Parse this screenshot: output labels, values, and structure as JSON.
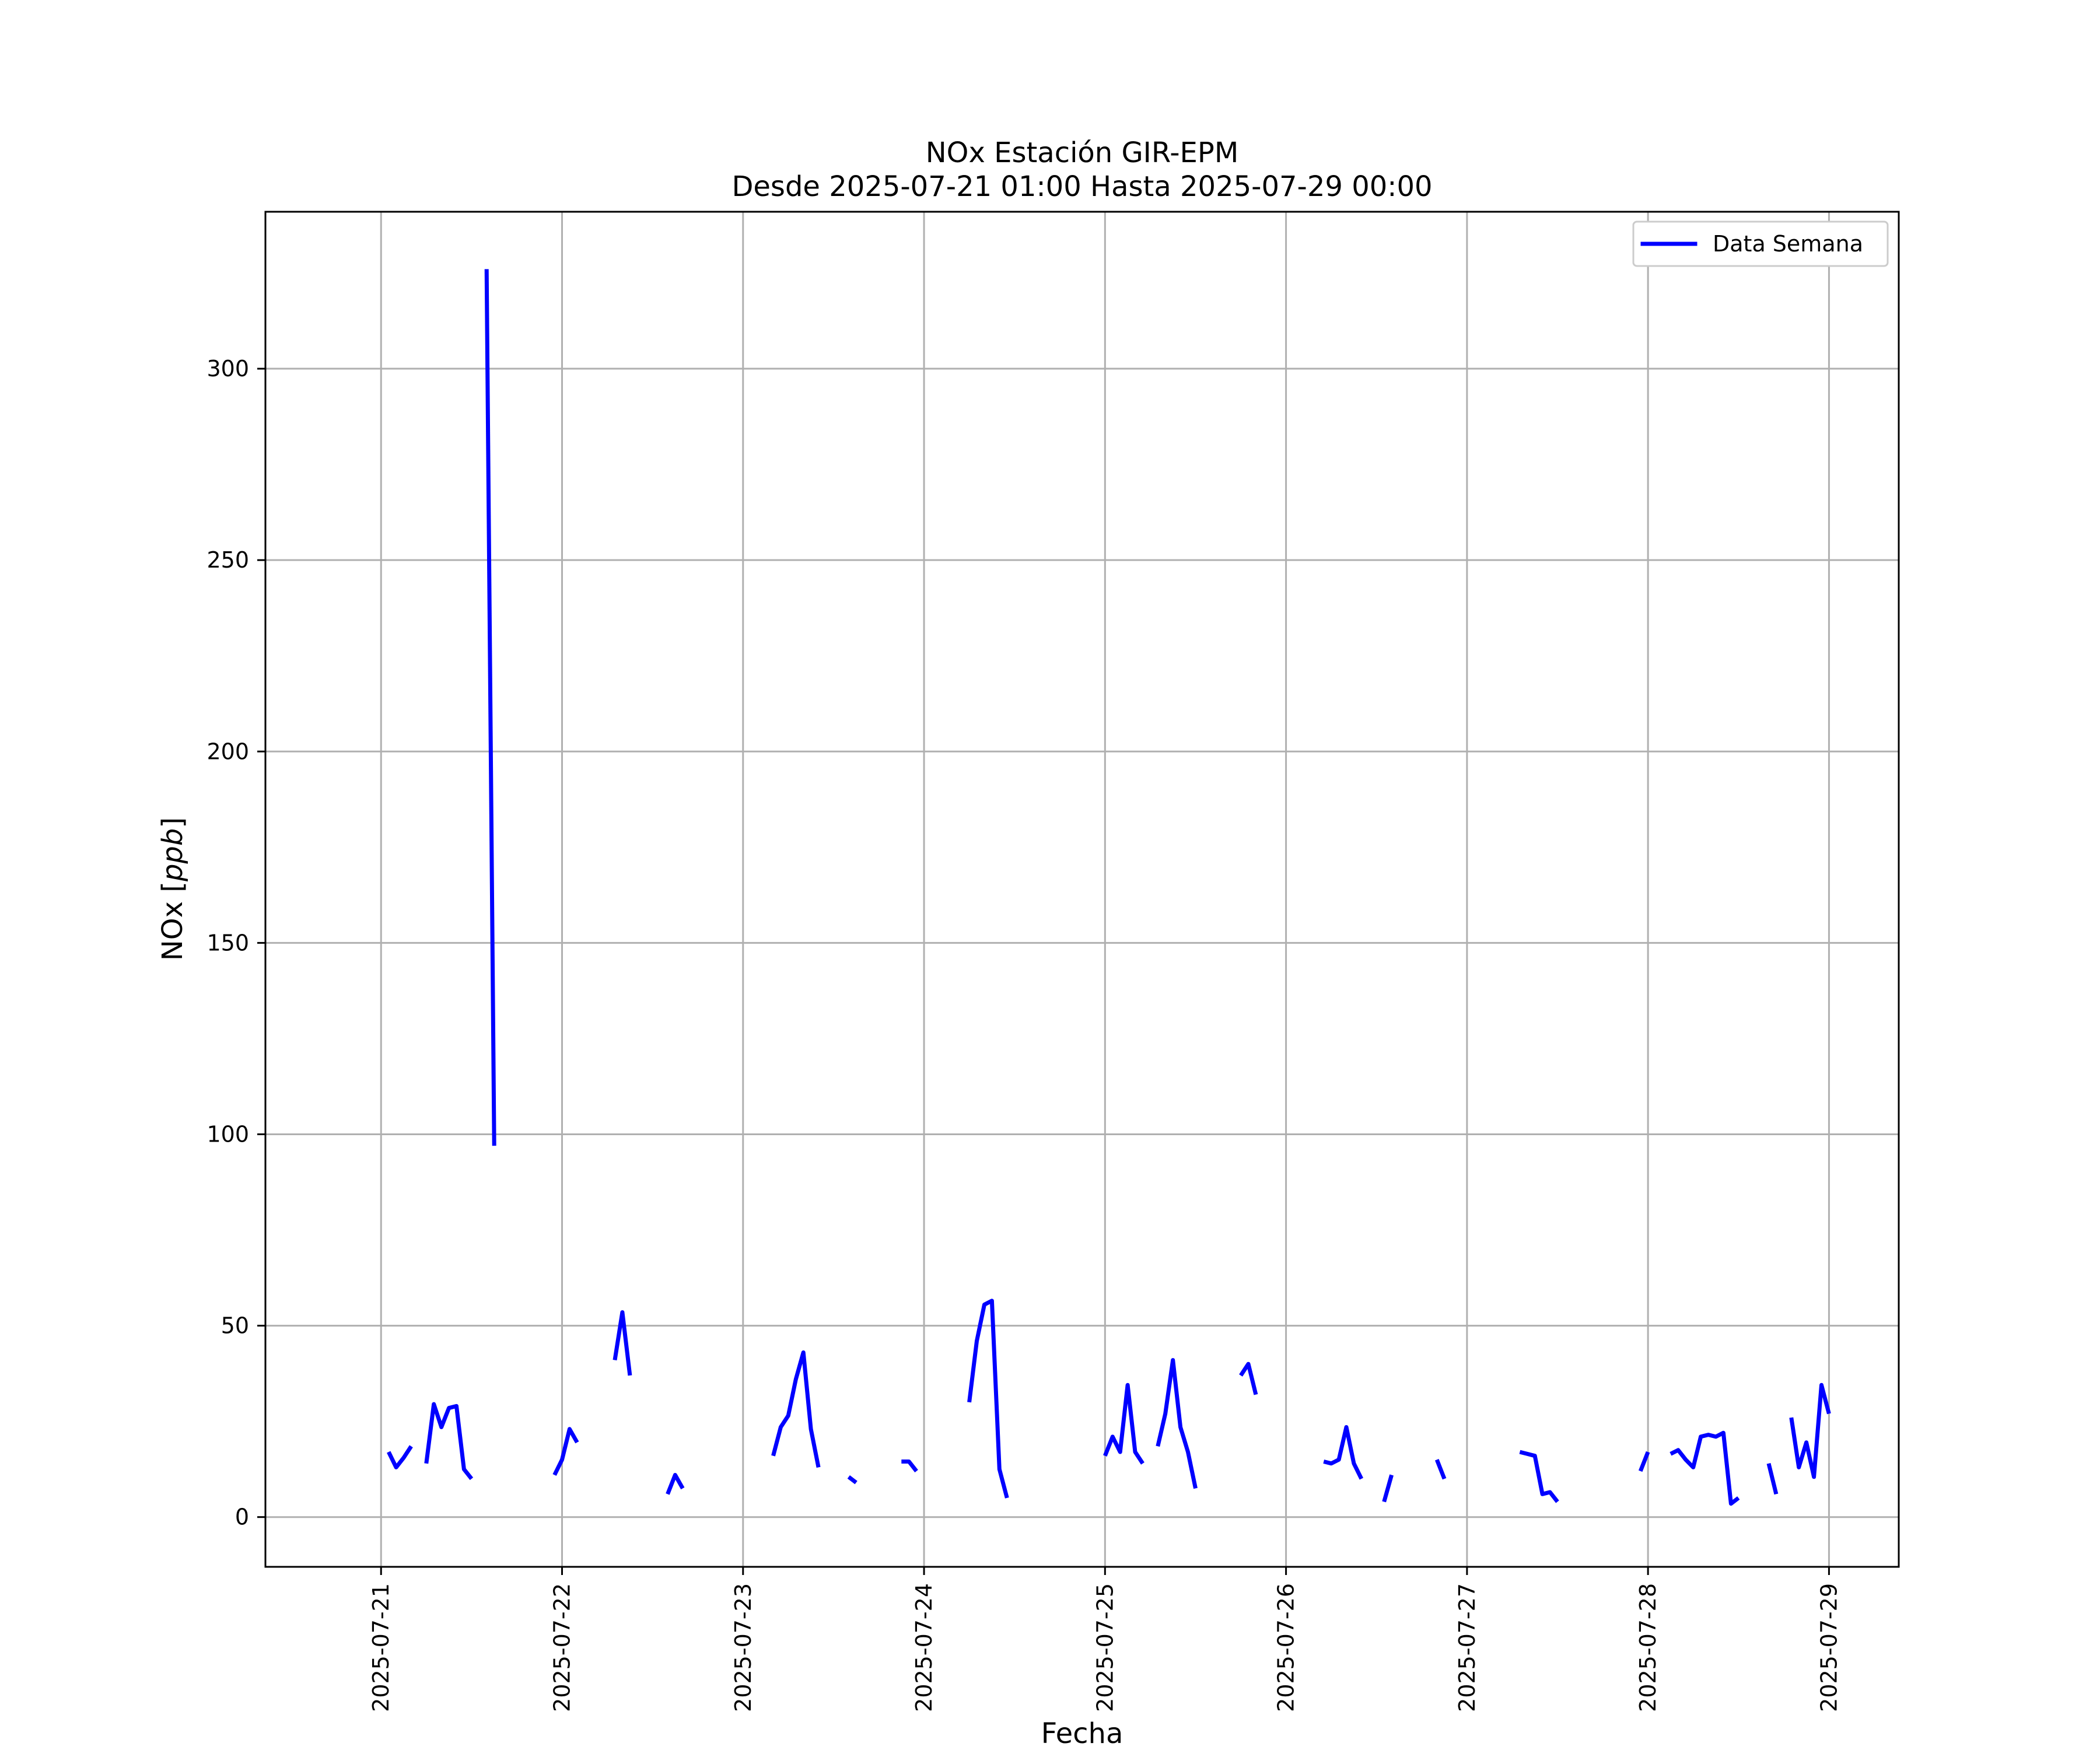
{
  "chart_data": {
    "type": "line",
    "title": [
      "NOx Estación GIR-EPM",
      "Desde 2025-07-21 01:00 Hasta 2025-07-29 00:00"
    ],
    "xlabel": "Fecha",
    "ylabel": "NOx [ppb]",
    "ylabel_parts": {
      "prefix": "NOx [",
      "unit": "ppb",
      "suffix": "]"
    },
    "x_ticks": [
      "2025-07-21",
      "2025-07-22",
      "2025-07-23",
      "2025-07-24",
      "2025-07-25",
      "2025-07-26",
      "2025-07-27",
      "2025-07-28",
      "2025-07-29"
    ],
    "y_ticks": [
      0,
      50,
      100,
      150,
      200,
      250,
      300
    ],
    "xlim": [
      "2025-07-20 08:40",
      "2025-07-29 09:15"
    ],
    "ylim": [
      -13,
      341
    ],
    "grid": true,
    "legend": {
      "position": "top-right"
    },
    "series": [
      {
        "name": "Data Semana",
        "color": "#0000ff",
        "segments": [
          [
            [
              "2025-07-21 01:00",
              17
            ],
            [
              "2025-07-21 02:00",
              13
            ],
            [
              "2025-07-21 03:00",
              15.5
            ],
            [
              "2025-07-21 04:00",
              18.5
            ]
          ],
          [
            [
              "2025-07-21 06:00",
              14
            ],
            [
              "2025-07-21 07:00",
              29.5
            ],
            [
              "2025-07-21 08:00",
              23.5
            ],
            [
              "2025-07-21 09:00",
              28.5
            ],
            [
              "2025-07-21 10:00",
              29
            ],
            [
              "2025-07-21 11:00",
              12.5
            ],
            [
              "2025-07-21 12:00",
              10
            ]
          ],
          [
            [
              "2025-07-21 14:00",
              326
            ],
            [
              "2025-07-21 15:00",
              97
            ]
          ],
          [
            [
              "2025-07-21 23:00",
              11
            ],
            [
              "2025-07-22 00:00",
              15
            ],
            [
              "2025-07-22 01:00",
              23
            ],
            [
              "2025-07-22 02:00",
              19.5
            ]
          ],
          [
            [
              "2025-07-22 07:00",
              41
            ],
            [
              "2025-07-22 08:00",
              53.5
            ],
            [
              "2025-07-22 09:00",
              37
            ]
          ],
          [
            [
              "2025-07-22 14:00",
              6
            ],
            [
              "2025-07-22 15:00",
              11
            ],
            [
              "2025-07-22 16:00",
              7.5
            ]
          ],
          [
            [
              "2025-07-23 04:00",
              16
            ],
            [
              "2025-07-23 05:00",
              23.5
            ],
            [
              "2025-07-23 06:00",
              26.5
            ],
            [
              "2025-07-23 07:00",
              36
            ],
            [
              "2025-07-23 08:00",
              43
            ],
            [
              "2025-07-23 09:00",
              23
            ],
            [
              "2025-07-23 10:00",
              13
            ]
          ],
          [
            [
              "2025-07-23 14:00",
              10.5
            ],
            [
              "2025-07-23 15:00",
              9
            ]
          ],
          [
            [
              "2025-07-23 21:00",
              14.5
            ],
            [
              "2025-07-23 22:00",
              14.5
            ],
            [
              "2025-07-23 23:00",
              12
            ]
          ],
          [
            [
              "2025-07-24 06:00",
              30
            ],
            [
              "2025-07-24 07:00",
              46
            ],
            [
              "2025-07-24 08:00",
              55.5
            ],
            [
              "2025-07-24 09:00",
              56.5
            ],
            [
              "2025-07-24 10:00",
              12.5
            ],
            [
              "2025-07-24 11:00",
              5
            ]
          ],
          [
            [
              "2025-07-25 00:00",
              16
            ],
            [
              "2025-07-25 01:00",
              21
            ],
            [
              "2025-07-25 02:00",
              17
            ],
            [
              "2025-07-25 03:00",
              34.5
            ],
            [
              "2025-07-25 04:00",
              17
            ],
            [
              "2025-07-25 05:00",
              14
            ]
          ],
          [
            [
              "2025-07-25 07:00",
              18.5
            ],
            [
              "2025-07-25 08:00",
              27
            ],
            [
              "2025-07-25 09:00",
              41
            ],
            [
              "2025-07-25 10:00",
              23.5
            ],
            [
              "2025-07-25 11:00",
              17
            ],
            [
              "2025-07-25 12:00",
              7.5
            ]
          ],
          [
            [
              "2025-07-25 18:00",
              37
            ],
            [
              "2025-07-25 19:00",
              40
            ],
            [
              "2025-07-25 20:00",
              32
            ]
          ],
          [
            [
              "2025-07-26 05:00",
              14.5
            ],
            [
              "2025-07-26 06:00",
              14
            ],
            [
              "2025-07-26 07:00",
              15
            ],
            [
              "2025-07-26 08:00",
              23.5
            ],
            [
              "2025-07-26 09:00",
              14
            ],
            [
              "2025-07-26 10:00",
              10
            ]
          ],
          [
            [
              "2025-07-26 13:00",
              4
            ],
            [
              "2025-07-26 14:00",
              11
            ]
          ],
          [
            [
              "2025-07-26 20:00",
              15
            ],
            [
              "2025-07-26 21:00",
              10
            ]
          ],
          [
            [
              "2025-07-27 07:00",
              17
            ],
            [
              "2025-07-27 08:00",
              16.5
            ],
            [
              "2025-07-27 09:00",
              16
            ],
            [
              "2025-07-27 10:00",
              6
            ],
            [
              "2025-07-27 11:00",
              6.5
            ],
            [
              "2025-07-27 12:00",
              4
            ]
          ],
          [
            [
              "2025-07-27 23:00",
              12
            ],
            [
              "2025-07-28 00:00",
              17
            ]
          ],
          [
            [
              "2025-07-28 03:00",
              16.5
            ],
            [
              "2025-07-28 04:00",
              17.5
            ],
            [
              "2025-07-28 05:00",
              15
            ],
            [
              "2025-07-28 06:00",
              13
            ],
            [
              "2025-07-28 07:00",
              21
            ],
            [
              "2025-07-28 08:00",
              21.5
            ],
            [
              "2025-07-28 09:00",
              21
            ],
            [
              "2025-07-28 10:00",
              22
            ],
            [
              "2025-07-28 11:00",
              3.5
            ],
            [
              "2025-07-28 12:00",
              5
            ]
          ],
          [
            [
              "2025-07-28 16:00",
              14
            ],
            [
              "2025-07-28 17:00",
              6
            ]
          ],
          [
            [
              "2025-07-28 19:00",
              26
            ],
            [
              "2025-07-28 20:00",
              13
            ],
            [
              "2025-07-28 21:00",
              19.5
            ],
            [
              "2025-07-28 22:00",
              10.5
            ],
            [
              "2025-07-28 23:00",
              34.5
            ],
            [
              "2025-07-29 00:00",
              27
            ]
          ]
        ]
      }
    ]
  }
}
